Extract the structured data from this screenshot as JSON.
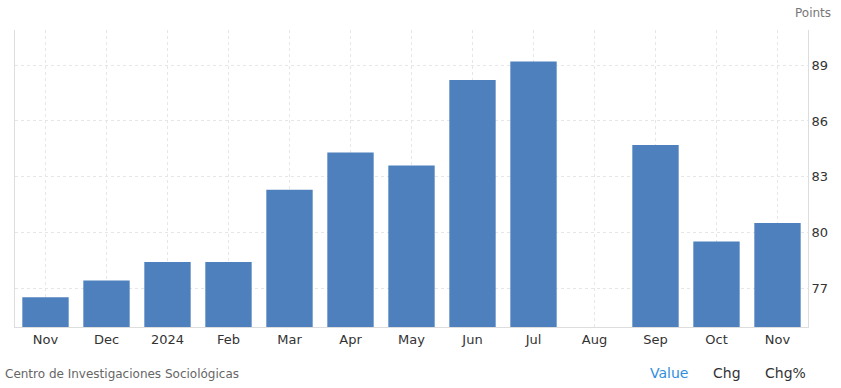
{
  "chart_data": {
    "type": "bar",
    "y_label": "Points",
    "source": "Centro de Investigaciones Sociológicas",
    "annotations": [
      "Value",
      "Chg",
      "Chg%"
    ],
    "categories": [
      "Nov",
      "Dec",
      "2024",
      "Feb",
      "Mar",
      "Apr",
      "May",
      "Jun",
      "Jul",
      "Aug",
      "Sep",
      "Oct",
      "Nov"
    ],
    "values": [
      76.5,
      77.4,
      78.4,
      78.4,
      82.3,
      84.3,
      83.6,
      88.2,
      89.2,
      null,
      84.7,
      79.5,
      80.5
    ],
    "color": "#4d80bd",
    "ylim": [
      74.9,
      90.9
    ],
    "yticks": [
      77,
      80,
      83,
      86,
      89
    ],
    "grid": true
  }
}
